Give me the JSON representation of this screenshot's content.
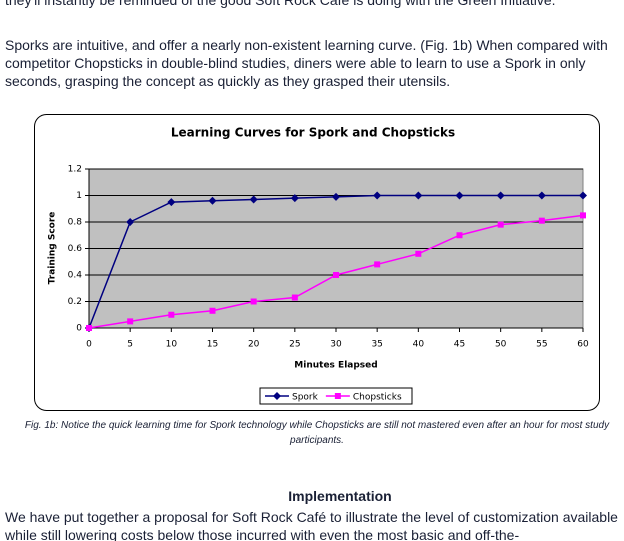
{
  "paragraphs": [
    "they'll instantly be reminded of the good Soft Rock Cafe is doing with the Green Initiative.",
    "Sporks are intuitive, and offer a nearly non-existent learning curve. (Fig. 1b) When compared with competitor Chopsticks in double-blind studies, diners were able to learn to use a Spork in only seconds, grasping the concept as quickly as they grasped their utensils."
  ],
  "chart_data": {
    "type": "line",
    "title": "Learning Curves for Spork and Chopsticks",
    "x_label": "Minutes Elapsed",
    "y_label": "Training Score",
    "x": [
      0,
      5,
      10,
      15,
      20,
      25,
      30,
      35,
      40,
      45,
      50,
      55,
      60
    ],
    "series": [
      {
        "name": "Spork",
        "color": "#000080",
        "marker": "diamond",
        "values": [
          0,
          0.8,
          0.95,
          0.96,
          0.97,
          0.98,
          0.99,
          1,
          1,
          1,
          1,
          1,
          1
        ]
      },
      {
        "name": "Chopsticks",
        "color": "#ff00ff",
        "marker": "square",
        "values": [
          0,
          0.05,
          0.1,
          0.13,
          0.2,
          0.23,
          0.4,
          0.48,
          0.56,
          0.7,
          0.78,
          0.81,
          0.85
        ]
      }
    ],
    "xlim": [
      0,
      60
    ],
    "xticks": [
      0,
      5,
      10,
      15,
      20,
      25,
      30,
      35,
      40,
      45,
      50,
      55,
      60
    ],
    "ylim": [
      0,
      1.2
    ],
    "yticks": [
      0,
      0.2,
      0.4,
      0.6,
      0.8,
      1,
      1.2
    ],
    "grid": true,
    "plot_background": "#c0c0c0",
    "legend": "bottom"
  },
  "caption": "Fig. 1b: Notice the quick learning time for Spork technology while Chopsticks are still not mastered even after an hour for most study participants.",
  "section": {
    "heading": "Implementation",
    "text": "We have put together a proposal for Soft Rock Café to illustrate the level of customization available while still lowering costs below those incurred with even the most basic and off-the-"
  }
}
